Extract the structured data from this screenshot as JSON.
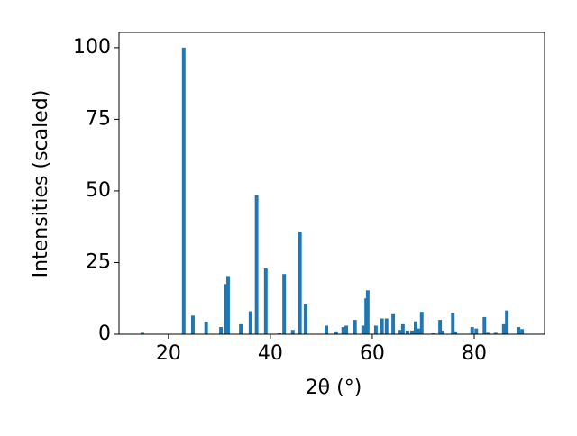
{
  "chart_data": {
    "type": "bar",
    "x_label": "2θ (°)",
    "y_label": "Intensities (scaled)",
    "x": [
      14.9,
      23.0,
      24.8,
      27.4,
      30.3,
      31.3,
      31.7,
      34.2,
      36.1,
      37.3,
      39.1,
      41.8,
      42.7,
      44.4,
      45.8,
      46.9,
      51.0,
      52.9,
      54.3,
      54.9,
      56.6,
      58.2,
      58.8,
      59.1,
      60.7,
      61.9,
      62.8,
      64.1,
      65.5,
      66.0,
      66.9,
      67.8,
      68.5,
      69.2,
      69.7,
      72.0,
      73.3,
      73.8,
      75.8,
      76.3,
      79.6,
      80.4,
      82.0,
      82.7,
      84.2,
      85.8,
      86.4,
      88.7,
      89.4
    ],
    "values": [
      0.5,
      100,
      6.5,
      4.3,
      2.5,
      17.5,
      20.3,
      3.5,
      8,
      48.5,
      23,
      0.3,
      21,
      1.5,
      35.8,
      10.5,
      3,
      1,
      2.5,
      3,
      5,
      3,
      12.5,
      15.3,
      3,
      5.5,
      5.5,
      7,
      1.5,
      3.5,
      1.3,
      1.3,
      4.5,
      2,
      7.8,
      0.3,
      5,
      1.3,
      7.5,
      1,
      2.5,
      2,
      6,
      0.5,
      0.5,
      3.5,
      8.3,
      2.5,
      1.8
    ],
    "color": "#1f77b4",
    "xlim": [
      10.3,
      93.8
    ],
    "xticks": [
      20,
      40,
      60,
      80
    ],
    "ylim": [
      0,
      105.3
    ],
    "yticks": [
      0,
      25,
      50,
      75,
      100
    ],
    "grid": false
  }
}
